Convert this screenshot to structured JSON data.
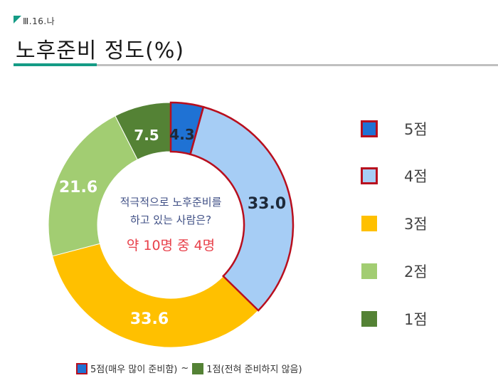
{
  "header": {
    "section_code": "Ⅲ.16.나",
    "title": "노후준비 정도(%)"
  },
  "colors": {
    "score5": "#1f72d4",
    "score4": "#a6cdf5",
    "score3": "#ffc000",
    "score2": "#a2cd72",
    "score1": "#548235",
    "highlight_border": "#b80f1e",
    "accent": "#149b85"
  },
  "center_text": {
    "question_line1": "적극적으로 노후준비를",
    "question_line2": "하고 있는 사람은?",
    "answer": "약 10명 중 4명"
  },
  "legend": {
    "items": [
      {
        "label": "5점",
        "color": "#1f72d4",
        "highlight": true
      },
      {
        "label": "4점",
        "color": "#a6cdf5",
        "highlight": true
      },
      {
        "label": "3점",
        "color": "#ffc000",
        "highlight": false
      },
      {
        "label": "2점",
        "color": "#a2cd72",
        "highlight": false
      },
      {
        "label": "1점",
        "color": "#548235",
        "highlight": false
      }
    ]
  },
  "footer": {
    "high_label": "5점(매우 많이 준비함)",
    "separator": "~",
    "low_label": "1점(전혀 준비하지 않음)"
  },
  "chart_data": {
    "type": "pie",
    "subtype": "donut",
    "title": "노후준비 정도(%)",
    "categories": [
      "5점",
      "4점",
      "3점",
      "2점",
      "1점"
    ],
    "values": [
      4.3,
      33.0,
      33.6,
      21.6,
      7.5
    ],
    "data_labels": [
      "4.3",
      "33.0",
      "33.6",
      "21.6",
      "7.5"
    ],
    "start_angle": "12 o'clock, clockwise",
    "legend_position": "right",
    "annotation": "적극적으로 노후준비를 하고 있는 사람은? 약 10명 중 4명",
    "highlighted_categories": [
      "5점",
      "4점"
    ]
  }
}
